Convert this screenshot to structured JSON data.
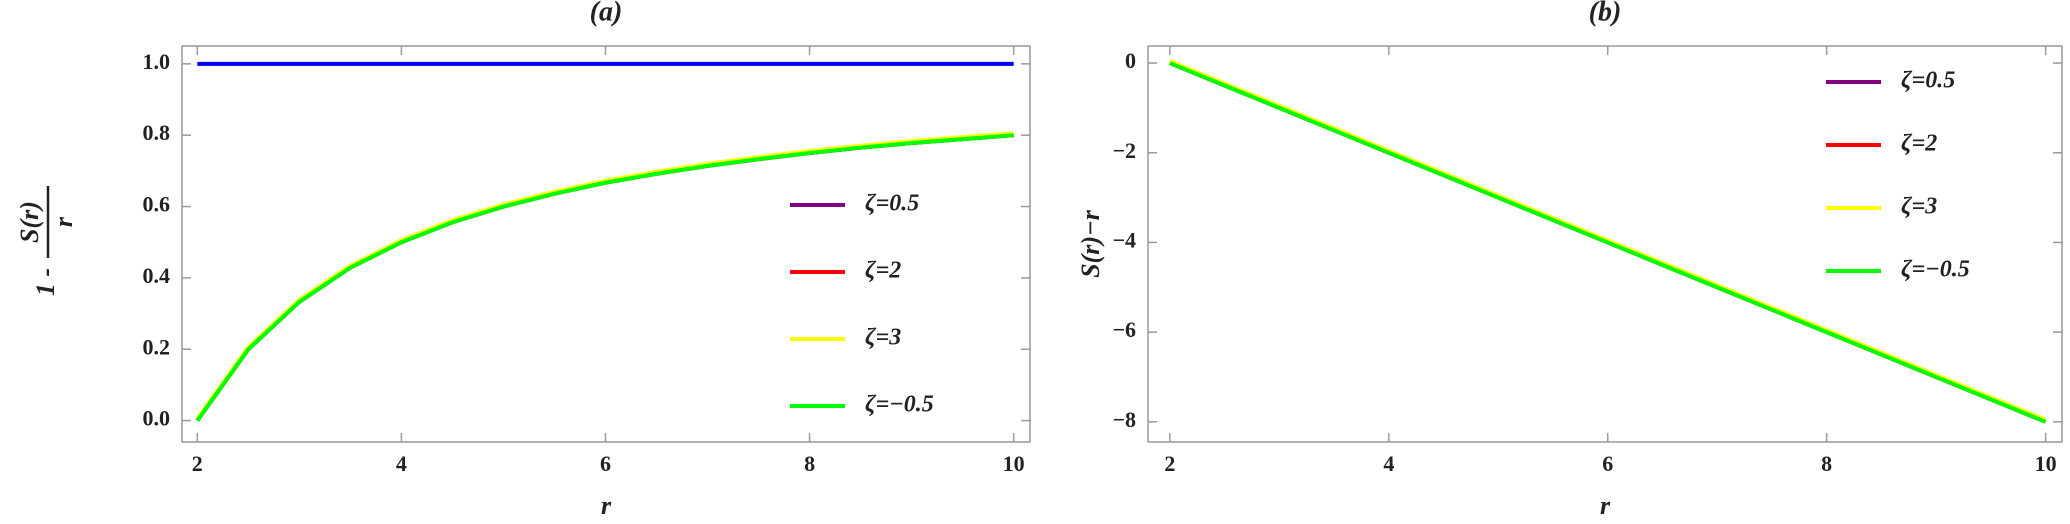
{
  "chart_data": [
    {
      "type": "line",
      "title": "(a)",
      "xlabel": "r",
      "ylabel": {
        "lead": "1 -",
        "numerator": "S(r)",
        "denominator": "r"
      },
      "x": [
        2,
        2.5,
        3,
        3.5,
        4,
        4.5,
        5,
        5.5,
        6,
        6.5,
        7,
        7.5,
        8,
        8.5,
        9,
        9.5,
        10
      ],
      "series": [
        {
          "name": "ζ=0.5",
          "color": "#800080",
          "values": [
            0,
            0.2,
            0.333,
            0.429,
            0.5,
            0.556,
            0.6,
            0.636,
            0.667,
            0.692,
            0.714,
            0.733,
            0.75,
            0.765,
            0.778,
            0.789,
            0.8
          ]
        },
        {
          "name": "ζ=2",
          "color": "#ff0000",
          "values": [
            0,
            0.2,
            0.333,
            0.429,
            0.5,
            0.556,
            0.6,
            0.636,
            0.667,
            0.692,
            0.714,
            0.733,
            0.75,
            0.765,
            0.778,
            0.789,
            0.8
          ]
        },
        {
          "name": "ζ=3",
          "color": "#ffff00",
          "values": [
            0,
            0.2,
            0.333,
            0.429,
            0.5,
            0.556,
            0.6,
            0.636,
            0.667,
            0.692,
            0.714,
            0.733,
            0.75,
            0.765,
            0.778,
            0.789,
            0.8
          ]
        },
        {
          "name": "ζ=−0.5",
          "color": "#00ff00",
          "values": [
            0,
            0.2,
            0.333,
            0.429,
            0.5,
            0.556,
            0.6,
            0.636,
            0.667,
            0.692,
            0.714,
            0.733,
            0.75,
            0.765,
            0.778,
            0.789,
            0.8
          ]
        }
      ],
      "hline": {
        "value": 1,
        "color": "#0000ff"
      },
      "xlim": [
        1.85,
        10.16
      ],
      "ylim": [
        -0.06,
        1.05
      ],
      "xticks": [
        2,
        4,
        6,
        8,
        10
      ],
      "yticks": [
        {
          "value": 0,
          "label": "0.0"
        },
        0.2,
        0.4,
        0.6,
        0.8,
        {
          "value": 1,
          "label": "1.0"
        }
      ],
      "grid": false,
      "legend_position": "right"
    },
    {
      "type": "line",
      "title": "(b)",
      "xlabel": "r",
      "ylabel": "S(r)−r",
      "x": [
        2,
        2.5,
        3,
        3.5,
        4,
        4.5,
        5,
        5.5,
        6,
        6.5,
        7,
        7.5,
        8,
        8.5,
        9,
        9.5,
        10
      ],
      "series": [
        {
          "name": "ζ=0.5",
          "color": "#800080",
          "values": [
            0,
            -0.5,
            -1,
            -1.5,
            -2,
            -2.5,
            -3,
            -3.5,
            -4,
            -4.5,
            -5,
            -5.5,
            -6,
            -6.5,
            -7,
            -7.5,
            -8
          ]
        },
        {
          "name": "ζ=2",
          "color": "#ff0000",
          "values": [
            0,
            -0.5,
            -1,
            -1.5,
            -2,
            -2.5,
            -3,
            -3.5,
            -4,
            -4.5,
            -5,
            -5.5,
            -6,
            -6.5,
            -7,
            -7.5,
            -8
          ]
        },
        {
          "name": "ζ=3",
          "color": "#ffff00",
          "values": [
            0,
            -0.5,
            -1,
            -1.5,
            -2,
            -2.5,
            -3,
            -3.5,
            -4,
            -4.5,
            -5,
            -5.5,
            -6,
            -6.5,
            -7,
            -7.5,
            -8
          ]
        },
        {
          "name": "ζ=−0.5",
          "color": "#00ff00",
          "values": [
            0,
            -0.5,
            -1,
            -1.5,
            -2,
            -2.5,
            -3,
            -3.5,
            -4,
            -4.5,
            -5,
            -5.5,
            -6,
            -6.5,
            -7,
            -7.5,
            -8
          ]
        }
      ],
      "xlim": [
        1.8,
        10.15
      ],
      "ylim": [
        -8.45,
        0.38
      ],
      "xticks": [
        2,
        4,
        6,
        8,
        10
      ],
      "yticks": [
        0,
        {
          "value": -2,
          "label": "−2"
        },
        {
          "value": -4,
          "label": "−4"
        },
        {
          "value": -6,
          "label": "−6"
        },
        {
          "value": -8,
          "label": "−8"
        }
      ],
      "grid": false,
      "legend_position": "upper right"
    }
  ]
}
